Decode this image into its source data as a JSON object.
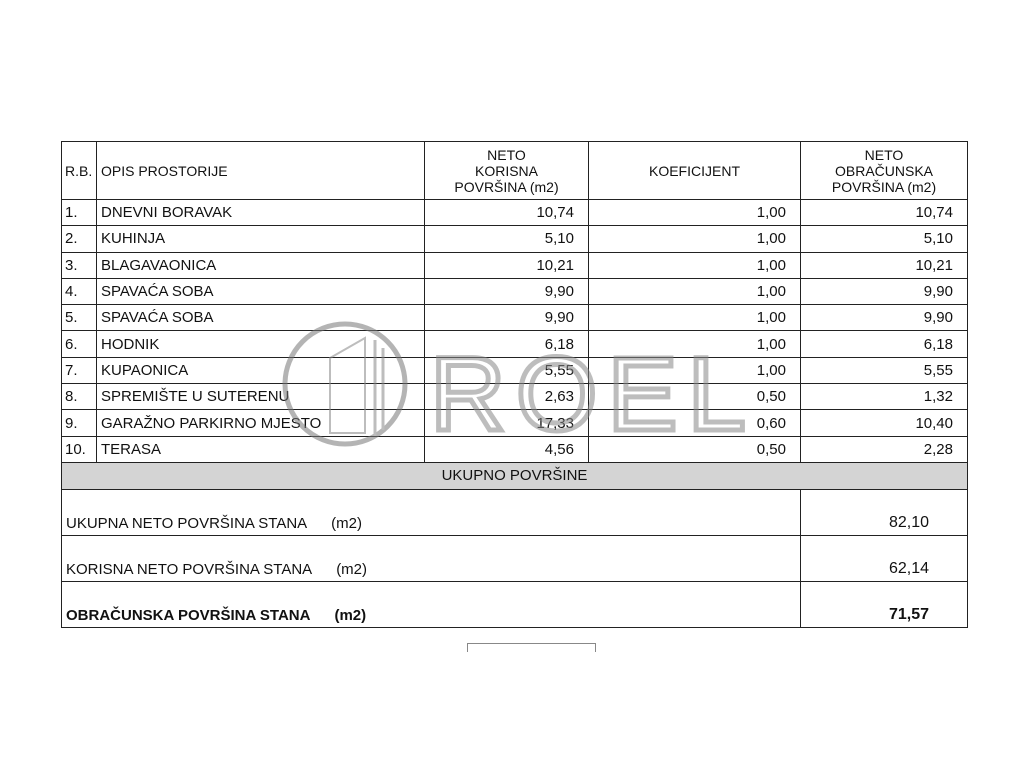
{
  "headers": {
    "rb": "R.B.",
    "opis": "OPIS PROSTORIJE",
    "neto_korisna": [
      "NETO",
      "KORISNA",
      "POVRŠINA (m2)"
    ],
    "koeficijent": "KOEFICIJENT",
    "neto_obracunska": [
      "NETO",
      "OBRAČUNSKA",
      "POVRŠINA (m2)"
    ]
  },
  "rows": [
    {
      "rb": "1.",
      "opis": "DNEVNI BORAVAK",
      "korisna": "10,74",
      "koef": "1,00",
      "obracunska": "10,74"
    },
    {
      "rb": "2.",
      "opis": "KUHINJA",
      "korisna": "5,10",
      "koef": "1,00",
      "obracunska": "5,10"
    },
    {
      "rb": "3.",
      "opis": "BLAGAVAONICA",
      "korisna": "10,21",
      "koef": "1,00",
      "obracunska": "10,21"
    },
    {
      "rb": "4.",
      "opis": "SPAVAĆA SOBA",
      "korisna": "9,90",
      "koef": "1,00",
      "obracunska": "9,90"
    },
    {
      "rb": "5.",
      "opis": "SPAVAĆA SOBA",
      "korisna": "9,90",
      "koef": "1,00",
      "obracunska": "9,90"
    },
    {
      "rb": "6.",
      "opis": "HODNIK",
      "korisna": "6,18",
      "koef": "1,00",
      "obracunska": "6,18"
    },
    {
      "rb": "7.",
      "opis": "KUPAONICA",
      "korisna": "5,55",
      "koef": "1,00",
      "obracunska": "5,55"
    },
    {
      "rb": "8.",
      "opis": "SPREMIŠTE U SUTERENU",
      "korisna": "2,63",
      "koef": "0,50",
      "obracunska": "1,32"
    },
    {
      "rb": "9.",
      "opis": "GARAŽNO PARKIRNO MJESTO",
      "korisna": "17,33",
      "koef": "0,60",
      "obracunska": "10,40"
    },
    {
      "rb": "10.",
      "opis": "TERASA",
      "korisna": "4,56",
      "koef": "0,50",
      "obracunska": "2,28"
    }
  ],
  "total_header": "UKUPNO POVRŠINE",
  "summary": [
    {
      "label": "UKUPNA NETO POVRŠINA STANA",
      "unit": "(m2)",
      "value": "82,10"
    },
    {
      "label": "KORISNA NETO POVRŠINA STANA",
      "unit": "(m2)",
      "value": "62,14"
    },
    {
      "label": "OBRAČUNSKA POVRŠINA STANA",
      "unit": "(m2)",
      "value": "71,57"
    }
  ],
  "watermark": "ROEL"
}
